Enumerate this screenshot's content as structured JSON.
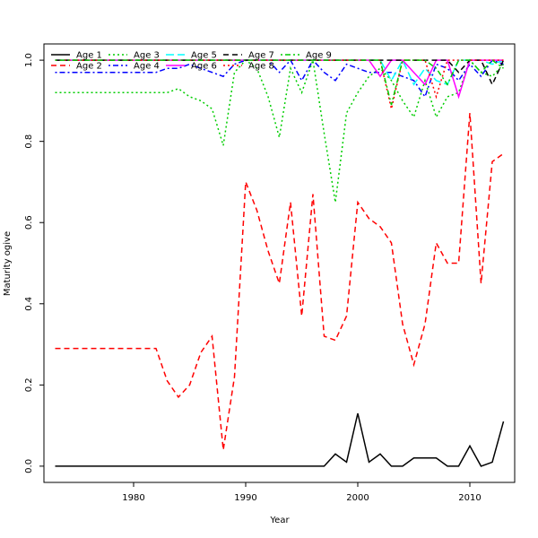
{
  "chart_data": {
    "type": "line",
    "title": "",
    "xlabel": "Year",
    "ylabel": "Maturity ogive",
    "xlim": [
      1972,
      2014
    ],
    "ylim": [
      -0.04,
      1.04
    ],
    "xticks": [
      1980,
      1990,
      2000,
      2010
    ],
    "yticks": [
      0.0,
      0.2,
      0.4,
      0.6,
      0.8,
      1.0
    ],
    "grid": false,
    "legend": "top-left",
    "x": [
      1973,
      1974,
      1975,
      1976,
      1977,
      1978,
      1979,
      1980,
      1981,
      1982,
      1983,
      1984,
      1985,
      1986,
      1987,
      1988,
      1989,
      1990,
      1991,
      1992,
      1993,
      1994,
      1995,
      1996,
      1997,
      1998,
      1999,
      2000,
      2001,
      2002,
      2003,
      2004,
      2005,
      2006,
      2007,
      2008,
      2009,
      2010,
      2011,
      2012,
      2013
    ],
    "series": [
      {
        "name": "Age 1",
        "color": "#000000",
        "dash": "solid",
        "values": [
          0,
          0,
          0,
          0,
          0,
          0,
          0,
          0,
          0,
          0,
          0,
          0,
          0,
          0,
          0,
          0,
          0,
          0,
          0,
          0,
          0,
          0,
          0,
          0,
          0,
          0.03,
          0.01,
          0.13,
          0.01,
          0.03,
          0,
          0,
          0.02,
          0.02,
          0.02,
          0,
          0,
          0.05,
          0,
          0.01,
          0.11
        ]
      },
      {
        "name": "Age 2",
        "color": "#ff0000",
        "dash": "dashed",
        "values": [
          0.29,
          0.29,
          0.29,
          0.29,
          0.29,
          0.29,
          0.29,
          0.29,
          0.29,
          0.29,
          0.21,
          0.17,
          0.2,
          0.28,
          0.32,
          0.04,
          0.22,
          0.7,
          0.63,
          0.53,
          0.45,
          0.65,
          0.37,
          0.67,
          0.32,
          0.31,
          0.37,
          0.65,
          0.61,
          0.59,
          0.55,
          0.35,
          0.25,
          0.35,
          0.55,
          0.5,
          0.5,
          0.87,
          0.45,
          0.75,
          0.77
        ]
      },
      {
        "name": "Age 3",
        "color": "#00cd00",
        "dash": "dotted",
        "values": [
          0.92,
          0.92,
          0.92,
          0.92,
          0.92,
          0.92,
          0.92,
          0.92,
          0.92,
          0.92,
          0.92,
          0.93,
          0.91,
          0.9,
          0.88,
          0.79,
          0.97,
          1,
          0.98,
          0.91,
          0.81,
          0.98,
          0.92,
          1,
          0.82,
          0.65,
          0.87,
          0.92,
          0.96,
          0.98,
          0.95,
          0.9,
          0.86,
          0.95,
          0.86,
          0.91,
          0.92,
          1,
          0.97,
          0.96,
          0.99
        ]
      },
      {
        "name": "Age 4",
        "color": "#0000ff",
        "dash": "dashdot",
        "values": [
          0.97,
          0.97,
          0.97,
          0.97,
          0.97,
          0.97,
          0.97,
          0.97,
          0.97,
          0.97,
          0.98,
          0.98,
          0.99,
          0.98,
          0.97,
          0.96,
          0.99,
          1,
          1,
          1,
          0.97,
          1,
          0.95,
          1,
          0.97,
          0.95,
          0.99,
          0.98,
          0.97,
          0.97,
          0.97,
          0.96,
          0.95,
          0.91,
          0.99,
          0.98,
          0.95,
          0.99,
          0.96,
          1,
          0.99
        ]
      },
      {
        "name": "Age 5",
        "color": "#00ffff",
        "dash": "longdash",
        "values": [
          1,
          1,
          1,
          1,
          1,
          1,
          1,
          1,
          1,
          1,
          1,
          1,
          1,
          1,
          1,
          1,
          1,
          1,
          1,
          1,
          1,
          1,
          1,
          1,
          1,
          1,
          1,
          1,
          1,
          1,
          0.95,
          1,
          0.94,
          0.98,
          0.95,
          0.94,
          1,
          1,
          1,
          0.99,
          1
        ]
      },
      {
        "name": "Age 6",
        "color": "#ff00ff",
        "dash": "solid",
        "values": [
          1,
          1,
          1,
          1,
          1,
          1,
          1,
          1,
          1,
          1,
          1,
          1,
          1,
          1,
          1,
          1,
          1,
          1,
          1,
          1,
          1,
          1,
          1,
          1,
          1,
          1,
          1,
          1,
          1,
          0.96,
          1,
          1,
          0.97,
          0.94,
          1,
          1,
          0.91,
          1,
          1,
          1,
          1
        ]
      },
      {
        "name": "Age 7",
        "color": "#000000",
        "dash": "dashed",
        "values": [
          1,
          1,
          1,
          1,
          1,
          1,
          1,
          1,
          1,
          1,
          1,
          1,
          1,
          1,
          1,
          1,
          1,
          1,
          1,
          1,
          1,
          1,
          1,
          1,
          1,
          1,
          1,
          1,
          1,
          1,
          1,
          1,
          1,
          1,
          1,
          1,
          0.97,
          1,
          1,
          0.94,
          1
        ]
      },
      {
        "name": "Age 8",
        "color": "#ff0000",
        "dash": "dotted",
        "values": [
          1,
          1,
          1,
          1,
          1,
          1,
          1,
          1,
          1,
          1,
          1,
          1,
          1,
          1,
          1,
          1,
          1,
          1,
          1,
          1,
          1,
          1,
          1,
          1,
          1,
          1,
          1,
          1,
          1,
          1,
          0.88,
          1,
          1,
          1,
          0.91,
          1,
          1,
          1,
          1,
          1,
          1
        ]
      },
      {
        "name": "Age 9",
        "color": "#00cd00",
        "dash": "dashdot",
        "values": [
          1,
          1,
          1,
          1,
          1,
          1,
          1,
          1,
          1,
          1,
          1,
          1,
          1,
          1,
          1,
          1,
          1,
          1,
          1,
          1,
          1,
          1,
          1,
          1,
          1,
          1,
          1,
          1,
          1,
          1,
          0.89,
          1,
          1,
          1,
          0.98,
          0.94,
          1,
          1,
          0.97,
          1,
          0.98
        ]
      }
    ]
  }
}
